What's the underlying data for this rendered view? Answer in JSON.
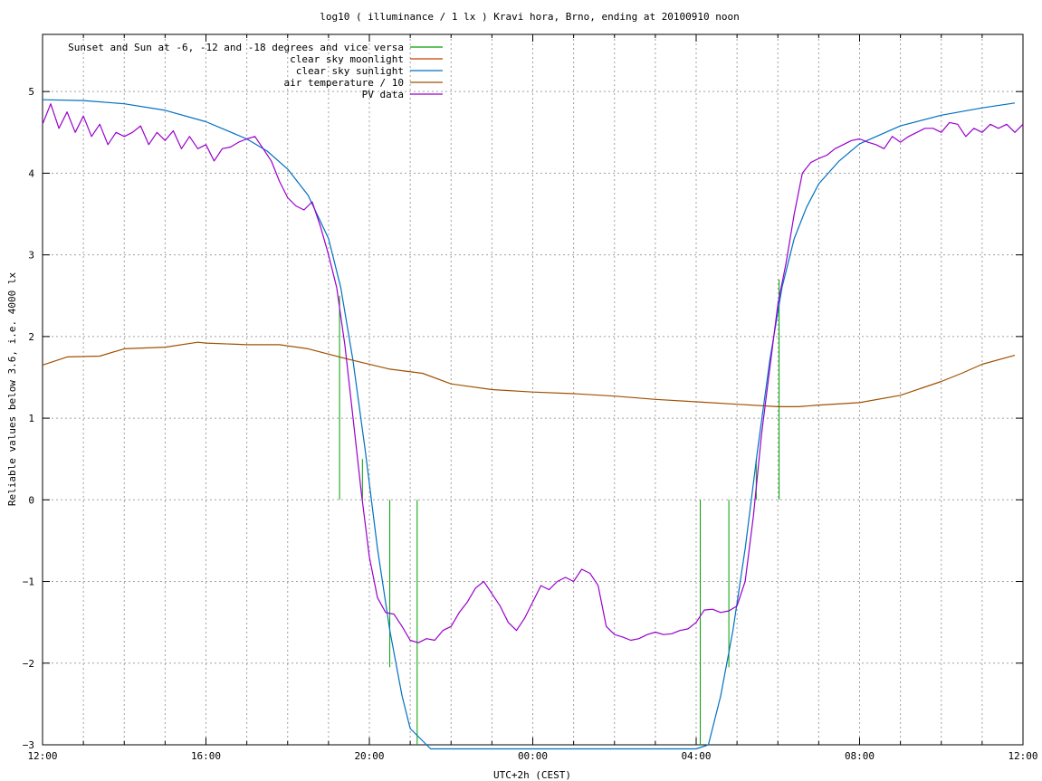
{
  "chart_data": {
    "type": "line",
    "title": "log10 ( illuminance / 1 lx ) Kravi hora, Brno, ending at 20100910 noon",
    "xlabel": "UTC+2h (CEST)",
    "ylabel": "Reliable values below 3.6, i.e. 4000 lx",
    "xlim": [
      12,
      36
    ],
    "ylim": [
      -3,
      5.7
    ],
    "grid": true,
    "x_ticks": [
      {
        "x": 12,
        "label": "12:00"
      },
      {
        "x": 16,
        "label": "16:00"
      },
      {
        "x": 20,
        "label": "20:00"
      },
      {
        "x": 24,
        "label": "00:00"
      },
      {
        "x": 28,
        "label": "04:00"
      },
      {
        "x": 32,
        "label": "08:00"
      },
      {
        "x": 36,
        "label": "12:00"
      }
    ],
    "y_ticks": [
      {
        "y": -3,
        "label": "−3"
      },
      {
        "y": -2,
        "label": "−2"
      },
      {
        "y": -1,
        "label": "−1"
      },
      {
        "y": 0,
        "label": "0"
      },
      {
        "y": 1,
        "label": "1"
      },
      {
        "y": 2,
        "label": "2"
      },
      {
        "y": 3,
        "label": "3"
      },
      {
        "y": 4,
        "label": "4"
      },
      {
        "y": 5,
        "label": "5"
      }
    ],
    "legend_position": "top-left",
    "series": [
      {
        "name": "Sunset and Sun at -6, -12 and -18 degrees and vice versa",
        "color": "#00a000",
        "style": "vertical-lines",
        "lines": [
          {
            "x": 19.27,
            "y0": 0,
            "y1": 2.5
          },
          {
            "x": 19.83,
            "y0": 0,
            "y1": 0.5
          },
          {
            "x": 20.5,
            "y0": -2.05,
            "y1": 0
          },
          {
            "x": 21.17,
            "y0": -3,
            "y1": 0
          },
          {
            "x": 28.1,
            "y0": -3,
            "y1": 0
          },
          {
            "x": 28.8,
            "y0": -2.05,
            "y1": 0
          },
          {
            "x": 29.47,
            "y0": 0,
            "y1": 0.5
          },
          {
            "x": 30.03,
            "y0": 0,
            "y1": 2.7
          }
        ]
      },
      {
        "name": "clear sky moonlight",
        "color": "#c04000",
        "x": [],
        "y": []
      },
      {
        "name": "clear sky sunlight",
        "color": "#0070c0",
        "x": [
          12.0,
          13.0,
          14.0,
          15.0,
          16.0,
          17.0,
          17.5,
          18.0,
          18.5,
          19.0,
          19.3,
          19.6,
          19.9,
          20.2,
          20.5,
          20.8,
          21.0,
          21.5,
          28.0,
          28.3,
          28.6,
          28.9,
          29.2,
          29.5,
          29.8,
          30.1,
          30.4,
          30.7,
          31.0,
          31.5,
          32.0,
          33.0,
          34.0,
          35.0,
          35.8
        ],
        "y": [
          4.9,
          4.89,
          4.85,
          4.77,
          4.63,
          4.42,
          4.27,
          4.05,
          3.73,
          3.2,
          2.6,
          1.7,
          0.6,
          -0.6,
          -1.6,
          -2.4,
          -2.8,
          -3.4,
          -3.4,
          -3.0,
          -2.4,
          -1.6,
          -0.6,
          0.6,
          1.7,
          2.6,
          3.2,
          3.58,
          3.87,
          4.15,
          4.36,
          4.58,
          4.71,
          4.8,
          4.86
        ]
      },
      {
        "name": "air temperature / 10",
        "color": "#a05000",
        "x": [
          12.0,
          12.6,
          13.4,
          14.0,
          15.0,
          15.8,
          16.0,
          17.0,
          17.8,
          18.5,
          19.5,
          20.5,
          21.3,
          22.0,
          23.0,
          24.0,
          25.0,
          26.0,
          27.0,
          28.0,
          29.0,
          30.0,
          30.5,
          31.0,
          32.0,
          33.0,
          34.0,
          34.5,
          35.0,
          35.8
        ],
        "y": [
          1.65,
          1.75,
          1.76,
          1.85,
          1.87,
          1.93,
          1.92,
          1.9,
          1.9,
          1.85,
          1.72,
          1.6,
          1.55,
          1.42,
          1.35,
          1.32,
          1.3,
          1.27,
          1.23,
          1.2,
          1.17,
          1.14,
          1.14,
          1.16,
          1.19,
          1.28,
          1.45,
          1.55,
          1.66,
          1.77
        ]
      },
      {
        "name": "PV data",
        "color": "#9900cc",
        "x": [
          12.0,
          12.2,
          12.4,
          12.6,
          12.8,
          13.0,
          13.2,
          13.4,
          13.6,
          13.8,
          14.0,
          14.2,
          14.4,
          14.6,
          14.8,
          15.0,
          15.2,
          15.4,
          15.6,
          15.8,
          16.0,
          16.2,
          16.4,
          16.6,
          16.8,
          17.0,
          17.2,
          17.4,
          17.6,
          17.8,
          18.0,
          18.2,
          18.4,
          18.6,
          18.8,
          19.0,
          19.2,
          19.4,
          19.6,
          19.8,
          20.0,
          20.2,
          20.4,
          20.6,
          20.8,
          21.0,
          21.2,
          21.4,
          21.6,
          21.8,
          22.0,
          22.2,
          22.4,
          22.6,
          22.8,
          23.0,
          23.2,
          23.4,
          23.6,
          23.8,
          24.0,
          24.2,
          24.4,
          24.6,
          24.8,
          25.0,
          25.2,
          25.4,
          25.6,
          25.8,
          26.0,
          26.2,
          26.4,
          26.6,
          26.8,
          27.0,
          27.2,
          27.4,
          27.6,
          27.8,
          28.0,
          28.2,
          28.4,
          28.6,
          28.8,
          29.0,
          29.2,
          29.4,
          29.6,
          29.8,
          30.0,
          30.2,
          30.4,
          30.6,
          30.8,
          31.0,
          31.2,
          31.4,
          31.6,
          31.8,
          32.0,
          32.2,
          32.4,
          32.6,
          32.8,
          33.0,
          33.2,
          33.4,
          33.6,
          33.8,
          34.0,
          34.2,
          34.4,
          34.6,
          34.8,
          35.0,
          35.2,
          35.4,
          35.6,
          35.8,
          36.0
        ],
        "y": [
          4.6,
          4.85,
          4.55,
          4.75,
          4.5,
          4.7,
          4.45,
          4.6,
          4.35,
          4.5,
          4.45,
          4.5,
          4.58,
          4.35,
          4.5,
          4.4,
          4.52,
          4.3,
          4.45,
          4.3,
          4.35,
          4.15,
          4.3,
          4.32,
          4.38,
          4.42,
          4.45,
          4.3,
          4.15,
          3.9,
          3.7,
          3.6,
          3.55,
          3.65,
          3.35,
          3.0,
          2.6,
          1.9,
          1.0,
          0.1,
          -0.7,
          -1.2,
          -1.38,
          -1.4,
          -1.55,
          -1.72,
          -1.75,
          -1.7,
          -1.72,
          -1.6,
          -1.55,
          -1.38,
          -1.25,
          -1.08,
          -1.0,
          -1.15,
          -1.3,
          -1.5,
          -1.6,
          -1.45,
          -1.25,
          -1.05,
          -1.1,
          -1.0,
          -0.95,
          -1.0,
          -0.85,
          -0.9,
          -1.05,
          -1.55,
          -1.65,
          -1.68,
          -1.72,
          -1.7,
          -1.65,
          -1.62,
          -1.65,
          -1.64,
          -1.6,
          -1.58,
          -1.5,
          -1.35,
          -1.34,
          -1.38,
          -1.36,
          -1.3,
          -1.0,
          -0.2,
          0.8,
          1.6,
          2.4,
          2.9,
          3.5,
          4.0,
          4.13,
          4.18,
          4.22,
          4.3,
          4.35,
          4.4,
          4.42,
          4.38,
          4.35,
          4.3,
          4.45,
          4.38,
          4.45,
          4.5,
          4.55,
          4.55,
          4.5,
          4.62,
          4.6,
          4.45,
          4.55,
          4.5,
          4.6,
          4.55,
          4.6,
          4.5,
          4.6
        ]
      }
    ]
  }
}
